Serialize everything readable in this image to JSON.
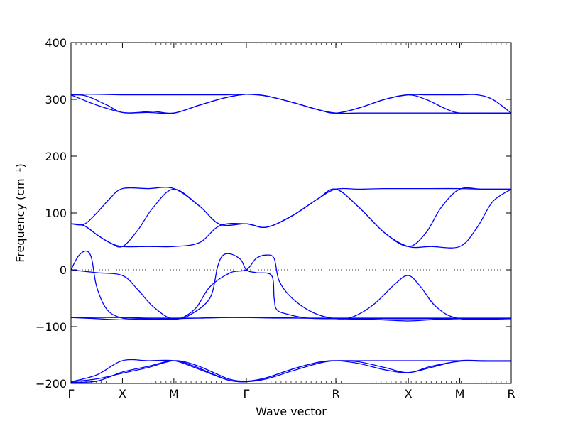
{
  "chart_data": {
    "type": "line",
    "xlabel": "Wave vector",
    "ylabel": "Frequency (cm⁻¹)",
    "ylim": [
      -200,
      400
    ],
    "y_ticks": [
      -200,
      -100,
      0,
      100,
      200,
      300,
      400
    ],
    "x_ticks": [
      {
        "label": "Γ",
        "x": 0
      },
      {
        "label": "X",
        "x": 1
      },
      {
        "label": "M",
        "x": 2
      },
      {
        "label": "Γ",
        "x": 3.41
      },
      {
        "label": "R",
        "x": 5.15
      },
      {
        "label": "X",
        "x": 6.56
      },
      {
        "label": "M",
        "x": 7.56
      },
      {
        "label": "R",
        "x": 8.56
      }
    ],
    "xlim": [
      0,
      8.56
    ],
    "zero_line": {
      "y": 0,
      "style": "dotted"
    },
    "grid": false,
    "line_color": "#0000ff",
    "series": [
      {
        "x": [
          0,
          0.5,
          1,
          1.5,
          2,
          2.5,
          3,
          3.41,
          3.8,
          4.3,
          4.8,
          5.15,
          5.6,
          6.1,
          6.56,
          6.9,
          7.2,
          7.56,
          7.9,
          8.2,
          8.56
        ],
        "values": [
          309,
          309,
          308,
          308,
          308,
          308,
          308,
          309,
          306,
          295,
          282,
          276,
          285,
          300,
          308,
          308,
          308,
          308,
          308,
          300,
          276
        ]
      },
      {
        "x": [
          0,
          0.3,
          0.7,
          1,
          1.5,
          2,
          2.5,
          3,
          3.41,
          3.8,
          4.3,
          4.8,
          5.15,
          5.6,
          6.1,
          6.56,
          6.9,
          7.3,
          7.56,
          8,
          8.56
        ],
        "values": [
          308,
          306,
          290,
          277,
          277,
          276,
          290,
          303,
          309,
          306,
          295,
          282,
          276,
          285,
          300,
          308,
          300,
          283,
          276,
          276,
          276
        ]
      },
      {
        "x": [
          0,
          0.5,
          1,
          1.3,
          1.6,
          2,
          2.5,
          3,
          3.41,
          3.8,
          4.3,
          4.8,
          5.15,
          5.6,
          6.1,
          6.56,
          7,
          7.56,
          8,
          8.56
        ],
        "values": [
          308,
          290,
          277,
          277,
          279,
          276,
          290,
          303,
          309,
          306,
          295,
          282,
          276,
          276,
          276,
          276,
          276,
          276,
          276,
          275
        ]
      },
      {
        "x": [
          0,
          0.25,
          0.5,
          0.75,
          1,
          1.5,
          2,
          2.5,
          2.9,
          3.41,
          3.8,
          4.3,
          4.8,
          5.15,
          5.6,
          6.1,
          6.56,
          7,
          7.56,
          8,
          8.56
        ],
        "values": [
          81,
          80,
          100,
          125,
          143,
          143,
          143,
          112,
          80,
          81,
          75,
          95,
          125,
          142,
          142,
          143,
          143,
          143,
          143,
          142,
          142
        ]
      },
      {
        "x": [
          0,
          0.25,
          0.5,
          0.75,
          1,
          1.3,
          1.6,
          2,
          2.5,
          2.9,
          3.41,
          3.8,
          4.3,
          4.8,
          5.15,
          5.6,
          6.1,
          6.56,
          6.9,
          7.2,
          7.56,
          8,
          8.56
        ],
        "values": [
          81,
          78,
          62,
          48,
          41,
          70,
          110,
          142,
          112,
          80,
          81,
          75,
          95,
          125,
          142,
          110,
          65,
          41,
          65,
          110,
          142,
          142,
          142
        ]
      },
      {
        "x": [
          0,
          0.25,
          0.5,
          0.75,
          1,
          1.5,
          2,
          2.5,
          2.9,
          3.41,
          3.8,
          4.3,
          4.8,
          5.15,
          5.6,
          6.1,
          6.56,
          7,
          7.56,
          7.9,
          8.2,
          8.56
        ],
        "values": [
          81,
          78,
          62,
          48,
          41,
          41,
          41,
          48,
          78,
          81,
          75,
          95,
          125,
          142,
          110,
          65,
          41,
          41,
          41,
          75,
          120,
          142
        ]
      },
      {
        "x": [
          0,
          0.15,
          0.3,
          0.4,
          0.5,
          0.7,
          1,
          1.4,
          2,
          2.3,
          2.7,
          2.85,
          2.95,
          3.1,
          3.3,
          3.41,
          3.6,
          3.9,
          3.95,
          4,
          4.2,
          4.6,
          5.15,
          6,
          6.56,
          7.56,
          8.56
        ],
        "values": [
          0,
          25,
          33,
          20,
          -30,
          -70,
          -85,
          -86,
          -87,
          -80,
          -50,
          5,
          25,
          28,
          18,
          0,
          -5,
          -10,
          -50,
          -70,
          -78,
          -85,
          -86,
          -86,
          -86,
          -86,
          -86
        ]
      },
      {
        "x": [
          0,
          0.5,
          1,
          1.3,
          1.6,
          2,
          2.4,
          2.7,
          3.1,
          3.41,
          3.6,
          3.8,
          3.95,
          4.05,
          4.3,
          4.7,
          5.15,
          5.5,
          5.9,
          6.3,
          6.56,
          6.8,
          7.1,
          7.56,
          8.56
        ],
        "values": [
          0,
          -5,
          -10,
          -35,
          -65,
          -87,
          -70,
          -30,
          -5,
          0,
          20,
          26,
          20,
          -20,
          -50,
          -75,
          -86,
          -82,
          -60,
          -25,
          -10,
          -30,
          -65,
          -86,
          -86
        ]
      },
      {
        "x": [
          0,
          1,
          1.5,
          2,
          2.5,
          3,
          3.41,
          4,
          4.5,
          5.15,
          6,
          6.56,
          7,
          7.56,
          8,
          8.56
        ],
        "values": [
          -84,
          -84,
          -85,
          -85,
          -85,
          -84,
          -84,
          -84,
          -85,
          -85,
          -85,
          -85,
          -85,
          -85,
          -85,
          -85
        ]
      },
      {
        "x": [
          0,
          0.5,
          1,
          1.5,
          2,
          2.5,
          3,
          3.41,
          4,
          4.5,
          5.15,
          6,
          6.56,
          7,
          7.56,
          8,
          8.56
        ],
        "values": [
          -84,
          -86,
          -88,
          -87,
          -86,
          -85,
          -84,
          -84,
          -85,
          -85,
          -86,
          -88,
          -90,
          -88,
          -86,
          -86,
          -86
        ]
      },
      {
        "x": [
          0,
          0.5,
          1,
          1.5,
          2,
          2.4,
          2.8,
          3.1,
          3.41,
          3.8,
          4.3,
          4.8,
          5.15,
          5.6,
          6.1,
          6.56,
          7,
          7.56,
          8,
          8.56
        ],
        "values": [
          -197,
          -192,
          -182,
          -172,
          -160,
          -167,
          -182,
          -193,
          -196,
          -190,
          -175,
          -163,
          -160,
          -165,
          -176,
          -181,
          -172,
          -160,
          -160,
          -161
        ]
      },
      {
        "x": [
          0,
          0.5,
          1,
          1.5,
          2,
          2.4,
          2.8,
          3.1,
          3.41,
          3.8,
          4.3,
          4.8,
          5.15,
          5.6,
          6.1,
          6.56,
          7,
          7.56,
          8,
          8.56
        ],
        "values": [
          -197,
          -185,
          -160,
          -160,
          -160,
          -172,
          -186,
          -195,
          -197,
          -190,
          -175,
          -163,
          -160,
          -160,
          -160,
          -160,
          -160,
          -160,
          -160,
          -160
        ]
      },
      {
        "x": [
          0,
          0.5,
          1,
          1.5,
          2,
          2.4,
          2.8,
          3.1,
          3.41,
          3.8,
          4.3,
          4.8,
          5.15,
          5.6,
          6.1,
          6.56,
          7,
          7.56,
          8,
          8.56
        ],
        "values": [
          -198,
          -196,
          -180,
          -170,
          -160,
          -170,
          -185,
          -195,
          -197,
          -192,
          -178,
          -165,
          -160,
          -162,
          -172,
          -181,
          -170,
          -161,
          -161,
          -161
        ]
      }
    ]
  }
}
